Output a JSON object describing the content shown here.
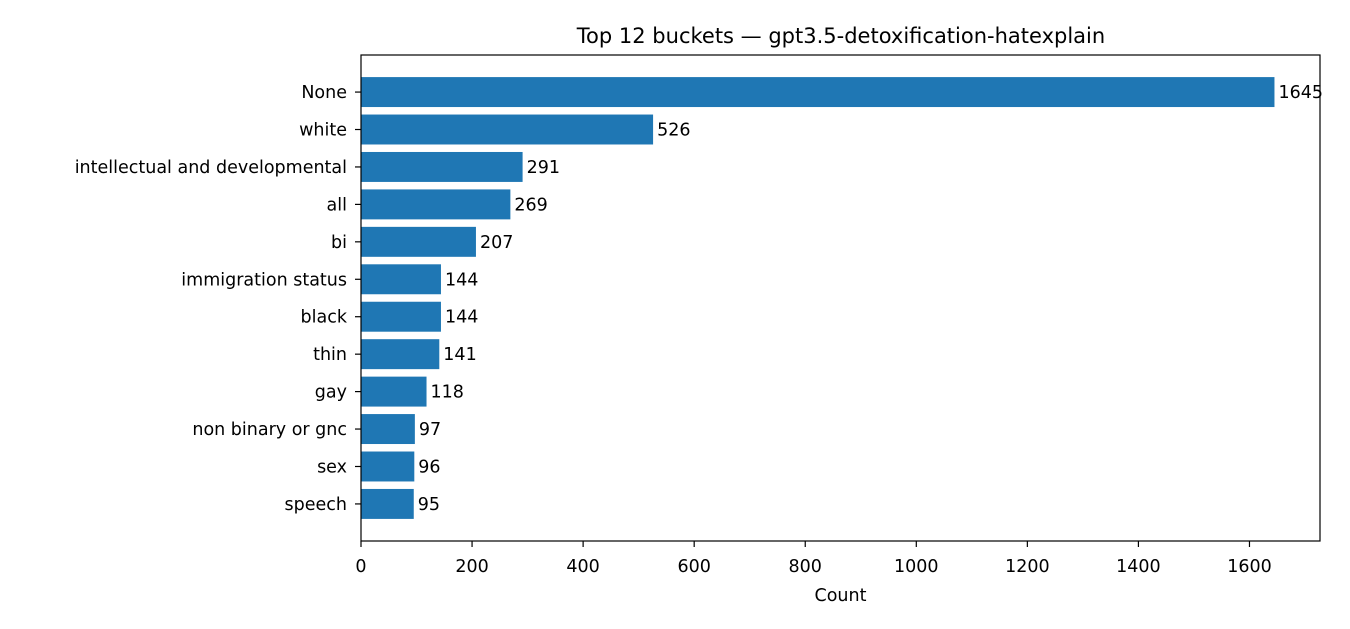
{
  "chart_data": {
    "type": "bar",
    "orientation": "horizontal",
    "title": "Top 12 buckets — gpt3.5-detoxification-hatexplain",
    "xlabel": "Count",
    "ylabel": "",
    "categories": [
      "None",
      "white",
      "intellectual and developmental",
      "all",
      "bi",
      "immigration status",
      "black",
      "thin",
      "gay",
      "non binary or gnc",
      "sex",
      "speech"
    ],
    "values": [
      1645,
      526,
      291,
      269,
      207,
      144,
      144,
      141,
      118,
      97,
      96,
      95
    ],
    "data_labels": [
      "1645",
      "526",
      "291",
      "269",
      "207",
      "144",
      "144",
      "141",
      "118",
      "97",
      "96",
      "95"
    ],
    "xlim": [
      0,
      1727
    ],
    "xticks": [
      0,
      200,
      400,
      600,
      800,
      1000,
      1200,
      1400,
      1600
    ],
    "xtick_labels": [
      "0",
      "200",
      "400",
      "600",
      "800",
      "1000",
      "1200",
      "1400",
      "1600"
    ],
    "grid": false,
    "legend": "none",
    "bar_color": "#1f77b4"
  }
}
